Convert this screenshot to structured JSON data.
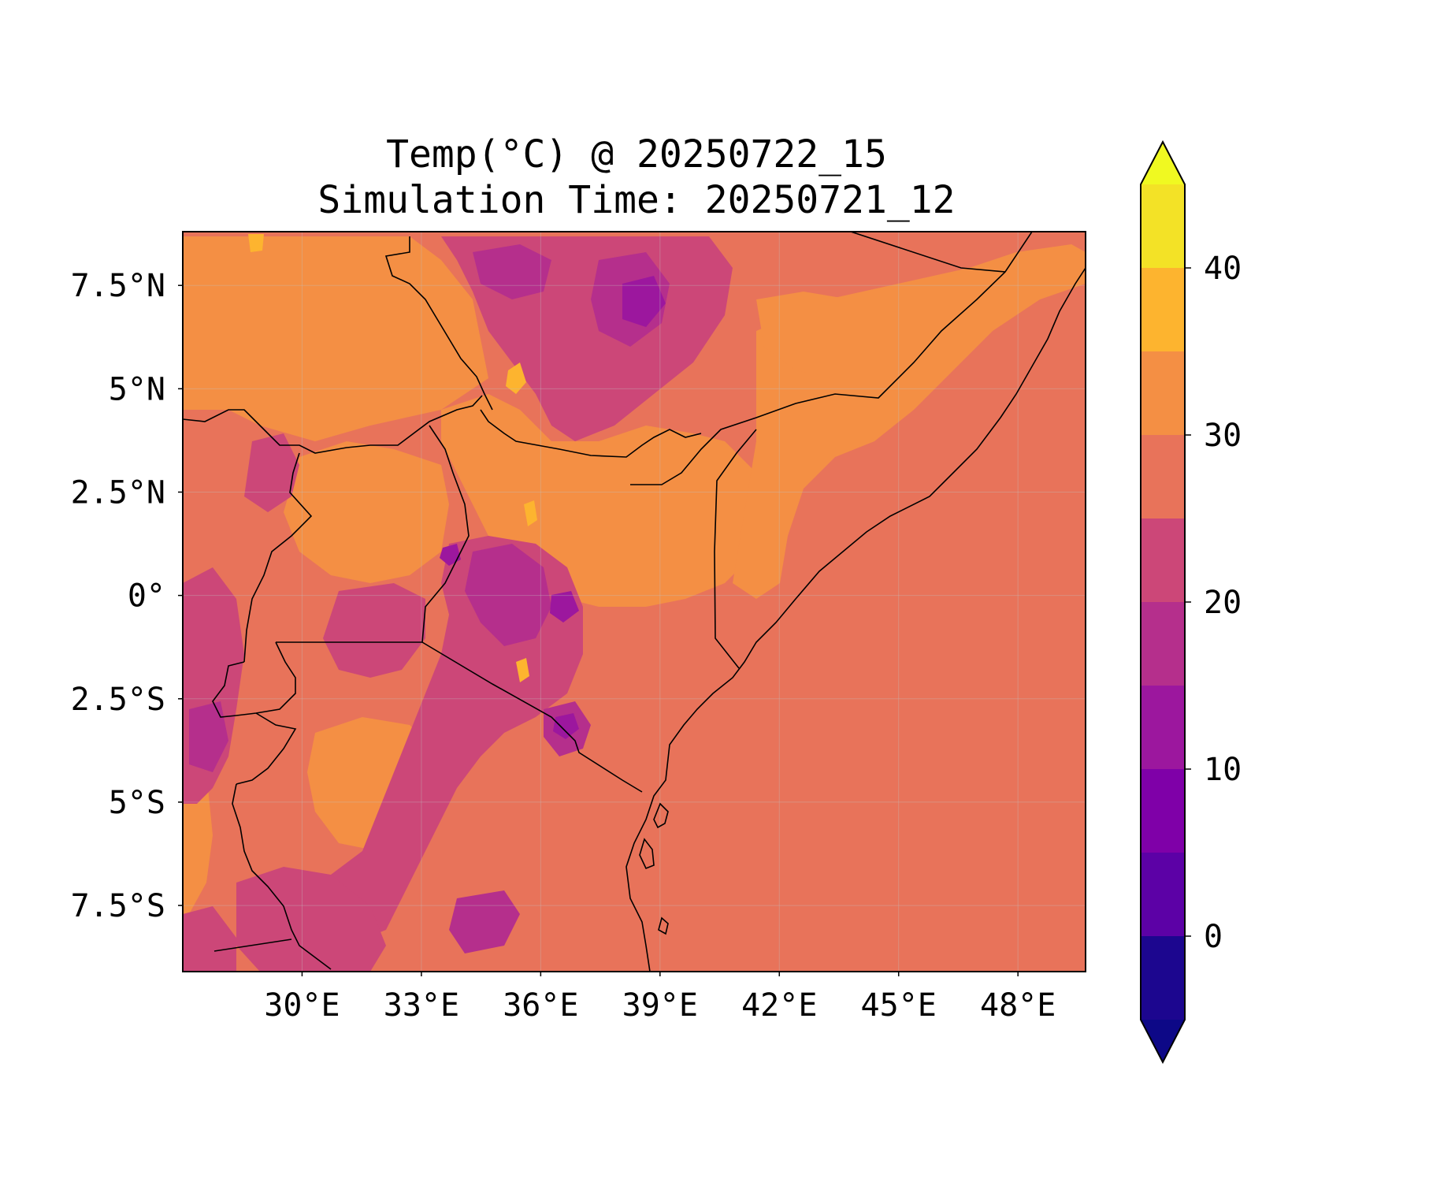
{
  "figure": {
    "title_line1": "Temp(°C) @ 20250722_15",
    "title_line2": "Simulation Time: 20250721_12"
  },
  "map": {
    "lon_range": [
      27.0,
      49.7
    ],
    "lat_range": [
      -9.1,
      8.8
    ],
    "lon_ticks": [
      {
        "value": 30,
        "label": "30°E"
      },
      {
        "value": 33,
        "label": "33°E"
      },
      {
        "value": 36,
        "label": "36°E"
      },
      {
        "value": 39,
        "label": "39°E"
      },
      {
        "value": 42,
        "label": "42°E"
      },
      {
        "value": 45,
        "label": "45°E"
      },
      {
        "value": 48,
        "label": "48°E"
      }
    ],
    "lat_ticks": [
      {
        "value": 7.5,
        "label": "7.5°N"
      },
      {
        "value": 5,
        "label": "5°N"
      },
      {
        "value": 2.5,
        "label": "2.5°N"
      },
      {
        "value": 0,
        "label": "0°"
      },
      {
        "value": -2.5,
        "label": "2.5°S"
      },
      {
        "value": -5,
        "label": "5°S"
      },
      {
        "value": -7.5,
        "label": "7.5°S"
      }
    ],
    "gridlines": true,
    "background_color": "#e8735a"
  },
  "colorbar": {
    "colormap": "plasma",
    "levels": [
      -5,
      0,
      5,
      10,
      15,
      20,
      25,
      30,
      35,
      40,
      45
    ],
    "extend": "both",
    "under_color": "#0d0887",
    "over_color": "#f0f921",
    "bin_colors": [
      "#1c068f",
      "#5c01a6",
      "#7f00a8",
      "#9c179e",
      "#b52f8c",
      "#cc4778",
      "#e8735a",
      "#f48f44",
      "#fdb42f",
      "#f3e226"
    ],
    "ticks": [
      {
        "value": 0,
        "label": "0"
      },
      {
        "value": 10,
        "label": "10"
      },
      {
        "value": 20,
        "label": "20"
      },
      {
        "value": 30,
        "label": "30"
      },
      {
        "value": 40,
        "label": "40"
      }
    ]
  }
}
